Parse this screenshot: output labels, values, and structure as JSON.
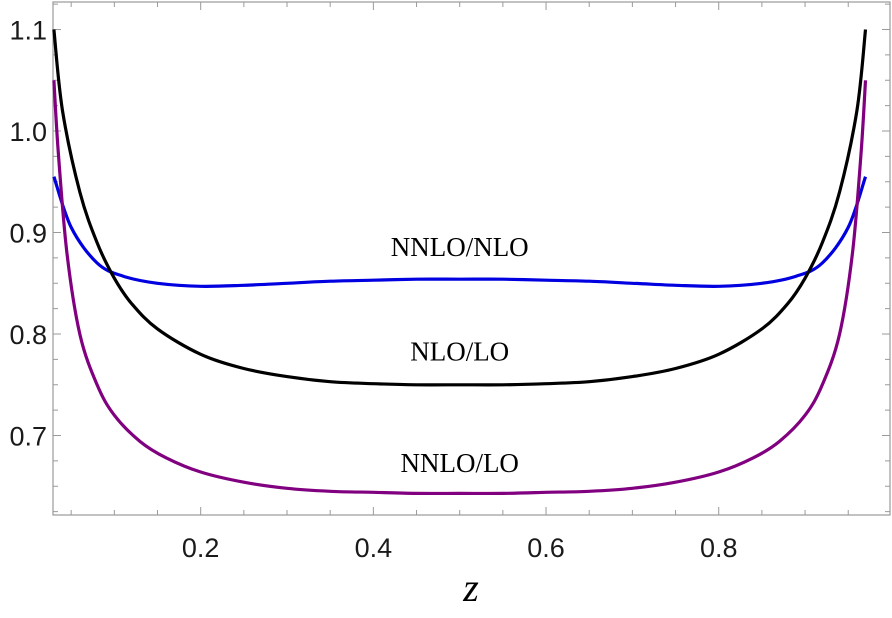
{
  "chart_data": {
    "type": "line",
    "title": "",
    "xlabel": "z",
    "ylabel": "",
    "xlim": [
      0.0,
      1.0
    ],
    "ylim": [
      0.615,
      1.13
    ],
    "x_ticks": [
      {
        "value": 0.2,
        "label": "0.2"
      },
      {
        "value": 0.4,
        "label": "0.4"
      },
      {
        "value": 0.6,
        "label": "0.6"
      },
      {
        "value": 0.8,
        "label": "0.8"
      }
    ],
    "y_ticks": [
      {
        "value": 0.7,
        "label": "0.7"
      },
      {
        "value": 0.8,
        "label": "0.8"
      },
      {
        "value": 0.9,
        "label": "0.9"
      },
      {
        "value": 1.0,
        "label": "1.0"
      },
      {
        "value": 1.1,
        "label": "1.1"
      }
    ],
    "grid": false,
    "legend": "none",
    "series": [
      {
        "name": "NNLO/NLO",
        "color": "#0000e0",
        "x": [
          0.03,
          0.05,
          0.08,
          0.11,
          0.15,
          0.2,
          0.25,
          0.3,
          0.35,
          0.4,
          0.45,
          0.5,
          0.55,
          0.6,
          0.65,
          0.7,
          0.75,
          0.8,
          0.85,
          0.89,
          0.92,
          0.95,
          0.97
        ],
        "y": [
          0.955,
          0.905,
          0.87,
          0.857,
          0.85,
          0.847,
          0.848,
          0.85,
          0.852,
          0.853,
          0.854,
          0.854,
          0.854,
          0.853,
          0.852,
          0.85,
          0.848,
          0.847,
          0.85,
          0.857,
          0.87,
          0.905,
          0.955
        ]
      },
      {
        "name": "NLO/LO",
        "color": "#000000",
        "x": [
          0.03,
          0.04,
          0.06,
          0.08,
          0.1,
          0.12,
          0.15,
          0.2,
          0.25,
          0.3,
          0.35,
          0.4,
          0.45,
          0.5,
          0.55,
          0.6,
          0.65,
          0.7,
          0.75,
          0.8,
          0.85,
          0.88,
          0.9,
          0.92,
          0.94,
          0.96,
          0.97
        ],
        "y": [
          1.1,
          1.02,
          0.94,
          0.89,
          0.855,
          0.83,
          0.805,
          0.78,
          0.766,
          0.758,
          0.753,
          0.751,
          0.75,
          0.75,
          0.75,
          0.751,
          0.753,
          0.758,
          0.766,
          0.78,
          0.805,
          0.83,
          0.855,
          0.89,
          0.94,
          1.02,
          1.1
        ]
      },
      {
        "name": "NNLO/LO",
        "color": "#800080",
        "x": [
          0.03,
          0.035,
          0.045,
          0.06,
          0.08,
          0.1,
          0.13,
          0.16,
          0.2,
          0.25,
          0.3,
          0.35,
          0.4,
          0.45,
          0.5,
          0.55,
          0.6,
          0.65,
          0.7,
          0.75,
          0.8,
          0.84,
          0.87,
          0.9,
          0.92,
          0.94,
          0.955,
          0.965,
          0.97
        ],
        "y": [
          1.05,
          0.98,
          0.88,
          0.8,
          0.75,
          0.72,
          0.694,
          0.678,
          0.664,
          0.654,
          0.648,
          0.645,
          0.644,
          0.643,
          0.643,
          0.643,
          0.644,
          0.645,
          0.648,
          0.654,
          0.664,
          0.678,
          0.694,
          0.72,
          0.75,
          0.8,
          0.88,
          0.98,
          1.05
        ]
      }
    ],
    "annotations": [
      {
        "text": "NNLO/NLO",
        "x": 0.5,
        "y": 0.877
      },
      {
        "text": "NLO/LO",
        "x": 0.5,
        "y": 0.774
      },
      {
        "text": "NNLO/LO",
        "x": 0.5,
        "y": 0.664
      }
    ]
  }
}
